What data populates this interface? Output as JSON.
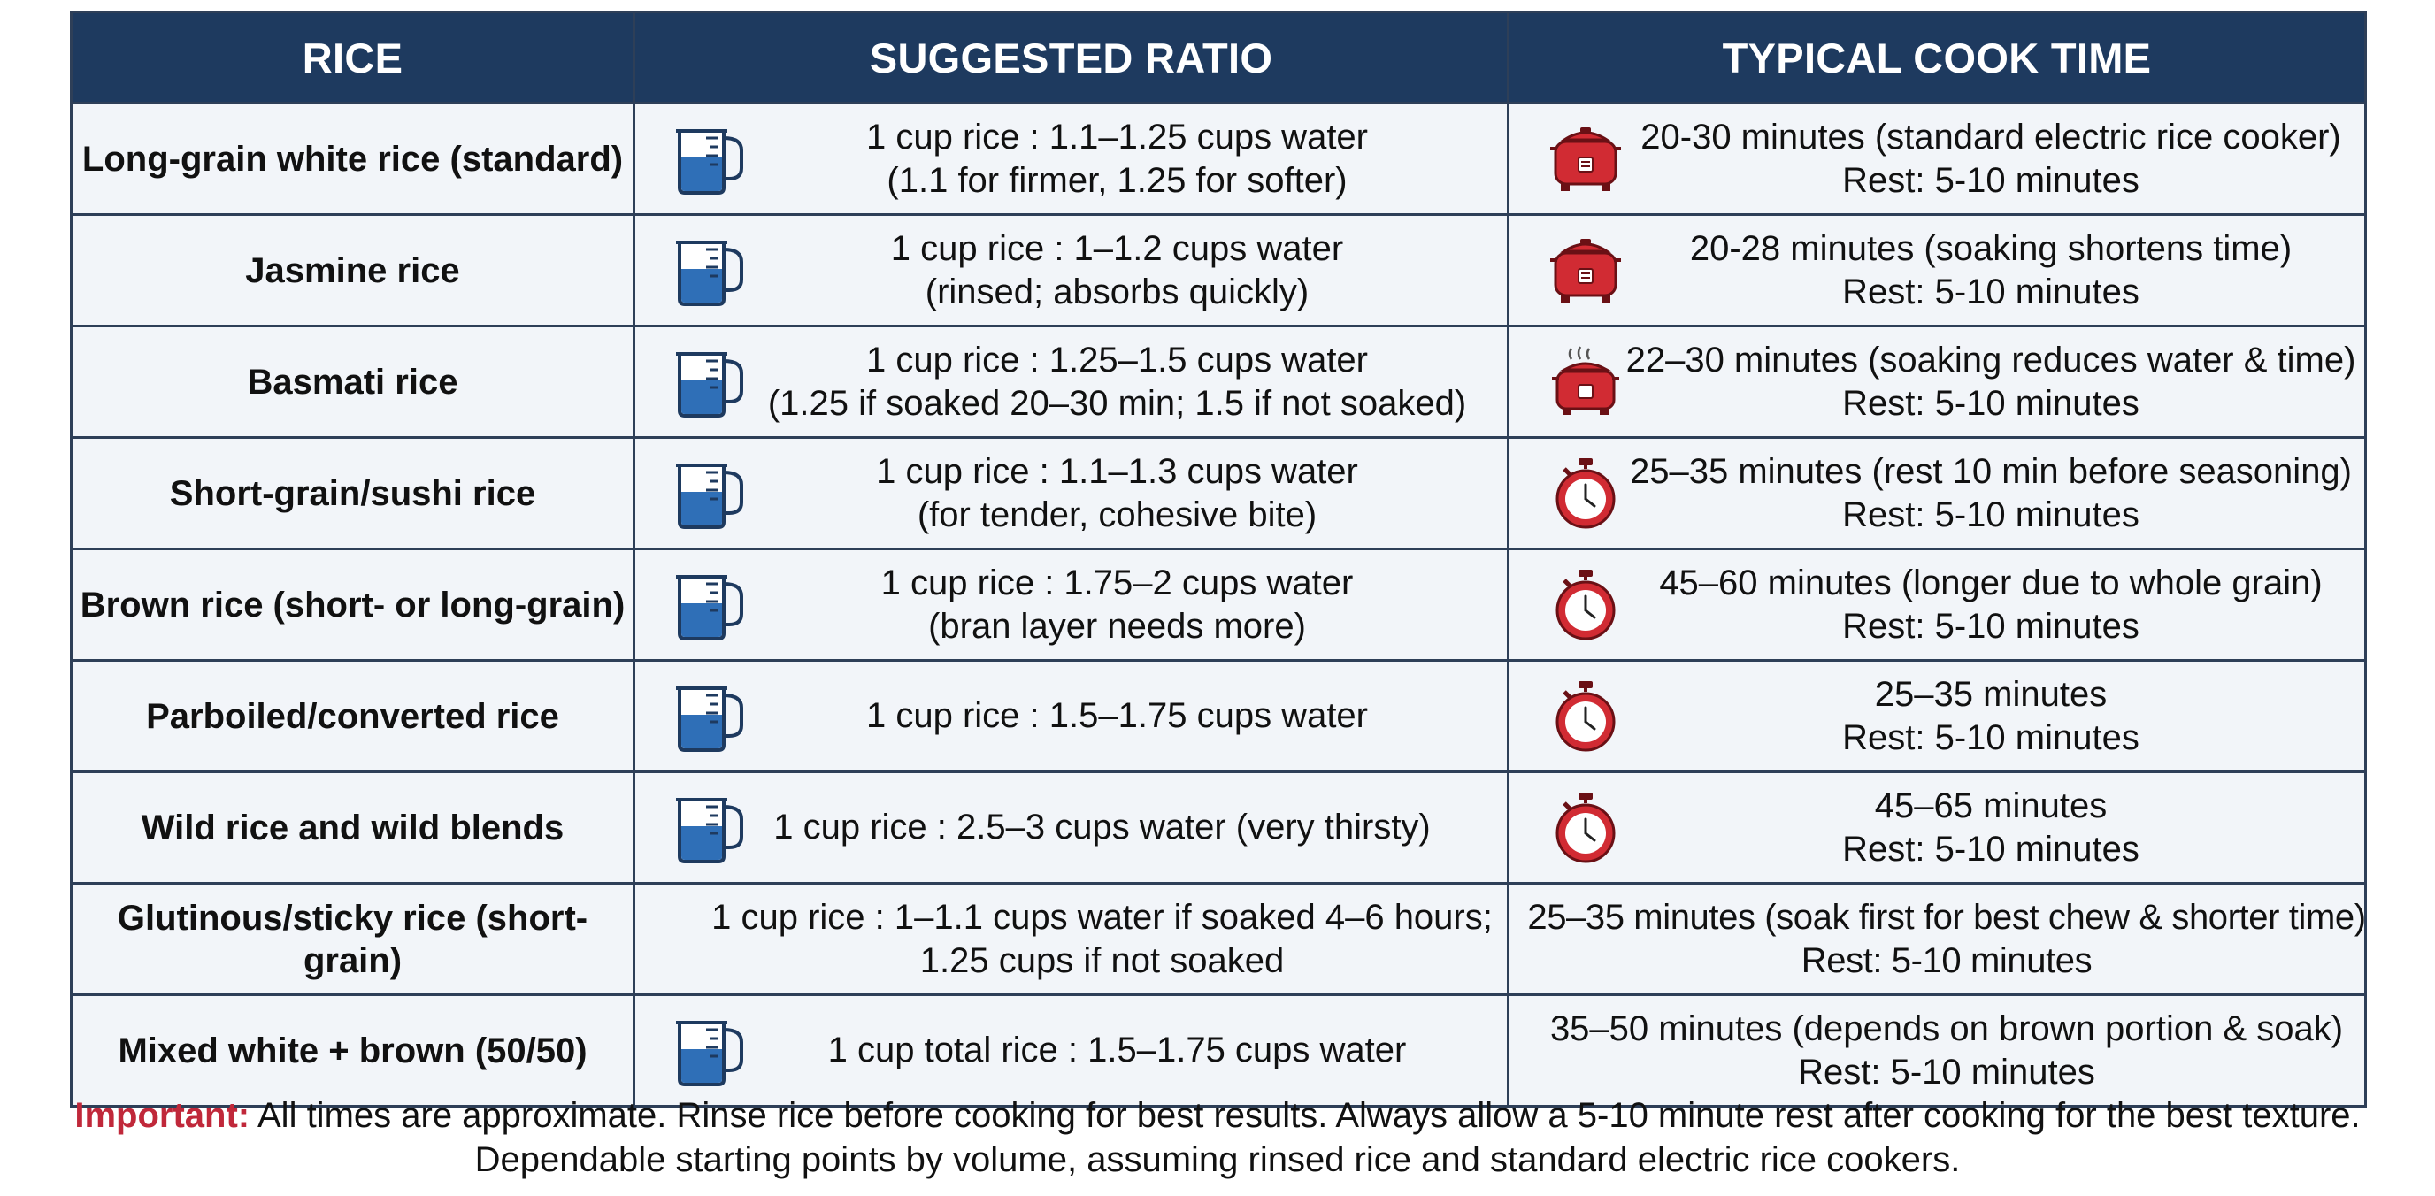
{
  "headers": {
    "rice": "RICE",
    "ratio": "SUGGESTED RATIO",
    "time": "TYPICAL COOK TIME"
  },
  "rows": [
    {
      "rice": "Long-grain white rice (standard)",
      "ratio_icon": "measuring-cup-icon",
      "ratio_line1": "1 cup rice : 1.1–1.25 cups water",
      "ratio_line2": "(1.1 for firmer, 1.25 for softer)",
      "time_icon": "rice-cooker-icon",
      "time_line1": "20-30 minutes (standard electric rice cooker)",
      "time_line2": "Rest: 5-10 minutes"
    },
    {
      "rice": "Jasmine rice",
      "ratio_icon": "measuring-cup-icon",
      "ratio_line1": "1 cup rice : 1–1.2 cups water",
      "ratio_line2": "(rinsed; absorbs quickly)",
      "time_icon": "rice-cooker-icon",
      "time_line1": "20-28 minutes (soaking shortens time)",
      "time_line2": "Rest: 5-10 minutes"
    },
    {
      "rice": "Basmati rice",
      "ratio_icon": "measuring-cup-icon",
      "ratio_line1": "1 cup rice : 1.25–1.5 cups water",
      "ratio_line2": "(1.25 if soaked 20–30 min; 1.5 if not soaked)",
      "time_icon": "steaming-rice-cooker-icon",
      "time_line1": "22–30 minutes (soaking reduces water & time)",
      "time_line2": "Rest: 5-10 minutes"
    },
    {
      "rice": "Short-grain/sushi rice",
      "ratio_icon": "measuring-cup-icon",
      "ratio_line1": "1 cup rice : 1.1–1.3 cups water",
      "ratio_line2": "(for tender, cohesive bite)",
      "time_icon": "stopwatch-icon",
      "time_line1": "25–35 minutes (rest 10 min before seasoning)",
      "time_line2": "Rest: 5-10 minutes"
    },
    {
      "rice": "Brown rice (short- or long-grain)",
      "ratio_icon": "measuring-cup-icon",
      "ratio_line1": "1 cup rice : 1.75–2 cups water",
      "ratio_line2": "(bran layer needs more)",
      "time_icon": "stopwatch-icon",
      "time_line1": "45–60 minutes (longer due to whole grain)",
      "time_line2": "Rest: 5-10 minutes"
    },
    {
      "rice": "Parboiled/converted rice",
      "ratio_icon": "measuring-cup-icon",
      "ratio_line1": "1 cup rice : 1.5–1.75 cups water",
      "ratio_line2": "",
      "time_icon": "stopwatch-icon",
      "time_line1": "25–35 minutes",
      "time_line2": "Rest: 5-10 minutes"
    },
    {
      "rice": "Wild rice and wild blends",
      "ratio_icon": "measuring-cup-icon",
      "ratio_line1": "1 cup rice : 2.5–3 cups water (very thirsty)",
      "ratio_line2": "",
      "time_icon": "stopwatch-icon",
      "time_line1": "45–65 minutes",
      "time_line2": "Rest: 5-10 minutes"
    },
    {
      "rice": "Glutinous/sticky rice (short-grain)",
      "ratio_icon": "",
      "ratio_line1": "1 cup rice : 1–1.1 cups water if soaked 4–6 hours;",
      "ratio_line2": "1.25 cups if not soaked",
      "time_icon": "",
      "time_line1": "25–35 minutes (soak first for best chew & shorter time)",
      "time_line2": "Rest: 5-10 minutes"
    },
    {
      "rice": "Mixed white + brown (50/50)",
      "ratio_icon": "measuring-cup-icon",
      "ratio_line1": "1 cup total rice : 1.5–1.75 cups water",
      "ratio_line2": "",
      "time_icon": "",
      "time_line1": "35–50 minutes (depends on brown portion & soak)",
      "time_line2": "Rest: 5-10 minutes"
    }
  ],
  "footer": {
    "important_label": "Important:",
    "line1": " All times are approximate. Rinse rice before cooking for best results. Always allow a 5-10 minute rest after cooking for the best texture.",
    "line2": "Dependable starting points by volume, assuming rinsed rice and standard electric rice cookers."
  },
  "colors": {
    "header_bg": "#1e3a5f",
    "cell_bg": "#f2f5f9",
    "border": "#2e3f58",
    "important": "#c0283a",
    "cup_water": "#2f6fb7",
    "cooker_red": "#d12b33"
  }
}
